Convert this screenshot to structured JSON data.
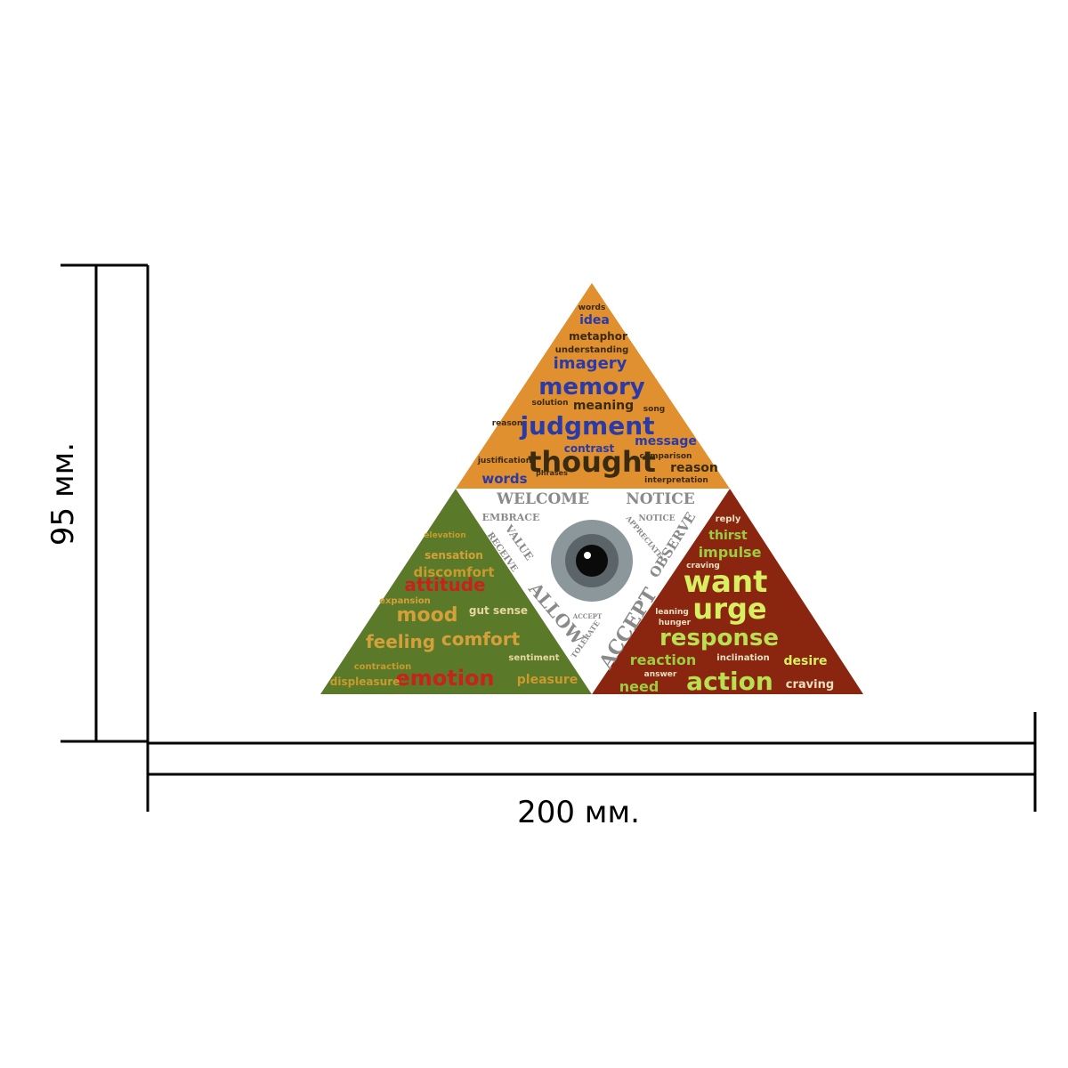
{
  "dimensions": {
    "height_label": "95 мм.",
    "width_label": "200 мм."
  },
  "thinking_words": [
    "words",
    "idea",
    "metaphor",
    "understanding",
    "imagery",
    "memory",
    "solution",
    "meaning",
    "song",
    "judgment",
    "reason",
    "message",
    "contrast",
    "comparison",
    "justification",
    "thought",
    "reason",
    "words",
    "phrases",
    "interpretation"
  ],
  "feeling_words": [
    "elevation",
    "sensation",
    "discomfort",
    "attitude",
    "expansion",
    "mood",
    "gut sense",
    "feeling",
    "comfort",
    "contraction",
    "sentiment",
    "emotion",
    "displeasure",
    "pleasure"
  ],
  "urge_words": [
    "reply",
    "thirst",
    "impulse",
    "craving",
    "want",
    "urge",
    "leaning",
    "hunger",
    "response",
    "reaction",
    "inclination",
    "desire",
    "answer",
    "need",
    "action",
    "craving"
  ],
  "center_words": [
    "WELCOME",
    "NOTICE",
    "EMBRACE",
    "NOTICE",
    "VALUE",
    "RECEIVE",
    "APPRECIATE",
    "OBSERVE",
    "ALLOW",
    "ACCEPT",
    "TOLERATE",
    "ACCEPT"
  ]
}
